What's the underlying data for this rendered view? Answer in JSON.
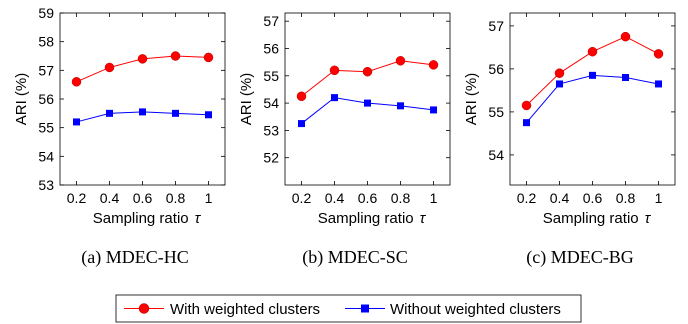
{
  "chart_data": [
    {
      "type": "line",
      "caption": "(a)  MDEC-HC",
      "xlabel": "Sampling ratio",
      "xsymbol": "τ",
      "ylabel": "ARI (%)",
      "x": [
        0.2,
        0.4,
        0.6,
        0.8,
        1
      ],
      "x_tick_labels": [
        "0.2",
        "0.4",
        "0.6",
        "0.8",
        "1"
      ],
      "xlim": [
        0.1,
        1.1
      ],
      "ylim": [
        53,
        59
      ],
      "y_ticks": [
        53,
        54,
        55,
        56,
        57,
        58,
        59
      ],
      "series": [
        {
          "name": "With weighted clusters",
          "color": "#ff0000",
          "marker": "circle",
          "values": [
            56.6,
            57.1,
            57.4,
            57.5,
            57.45
          ]
        },
        {
          "name": "Without weighted clusters",
          "color": "#0000ff",
          "marker": "square",
          "values": [
            55.2,
            55.5,
            55.55,
            55.5,
            55.45
          ]
        }
      ]
    },
    {
      "type": "line",
      "caption": "(b)  MDEC-SC",
      "xlabel": "Sampling ratio",
      "xsymbol": "τ",
      "ylabel": "ARI (%)",
      "x": [
        0.2,
        0.4,
        0.6,
        0.8,
        1
      ],
      "x_tick_labels": [
        "0.2",
        "0.4",
        "0.6",
        "0.8",
        "1"
      ],
      "xlim": [
        0.1,
        1.1
      ],
      "ylim": [
        51,
        57.3
      ],
      "y_ticks": [
        52,
        53,
        54,
        55,
        56,
        57
      ],
      "series": [
        {
          "name": "With weighted clusters",
          "color": "#ff0000",
          "marker": "circle",
          "values": [
            54.25,
            55.2,
            55.15,
            55.55,
            55.4
          ]
        },
        {
          "name": "Without weighted clusters",
          "color": "#0000ff",
          "marker": "square",
          "values": [
            53.25,
            54.2,
            54.0,
            53.9,
            53.75
          ]
        }
      ]
    },
    {
      "type": "line",
      "caption": "(c)  MDEC-BG",
      "xlabel": "Sampling ratio",
      "xsymbol": "τ",
      "ylabel": "ARI (%)",
      "x": [
        0.2,
        0.4,
        0.6,
        0.8,
        1
      ],
      "x_tick_labels": [
        "0.2",
        "0.4",
        "0.6",
        "0.8",
        "1"
      ],
      "xlim": [
        0.1,
        1.1
      ],
      "ylim": [
        53.3,
        57.3
      ],
      "y_ticks": [
        54,
        55,
        56,
        57
      ],
      "series": [
        {
          "name": "With weighted clusters",
          "color": "#ff0000",
          "marker": "circle",
          "values": [
            55.15,
            55.9,
            56.4,
            56.75,
            56.35
          ]
        },
        {
          "name": "Without weighted clusters",
          "color": "#0000ff",
          "marker": "square",
          "values": [
            54.75,
            55.65,
            55.85,
            55.8,
            55.65
          ]
        }
      ]
    }
  ],
  "legend": {
    "placement": "bottom-center",
    "items": [
      {
        "label": "With weighted clusters",
        "color": "#ff0000",
        "marker": "circle"
      },
      {
        "label": "Without weighted clusters",
        "color": "#0000ff",
        "marker": "square"
      }
    ]
  }
}
